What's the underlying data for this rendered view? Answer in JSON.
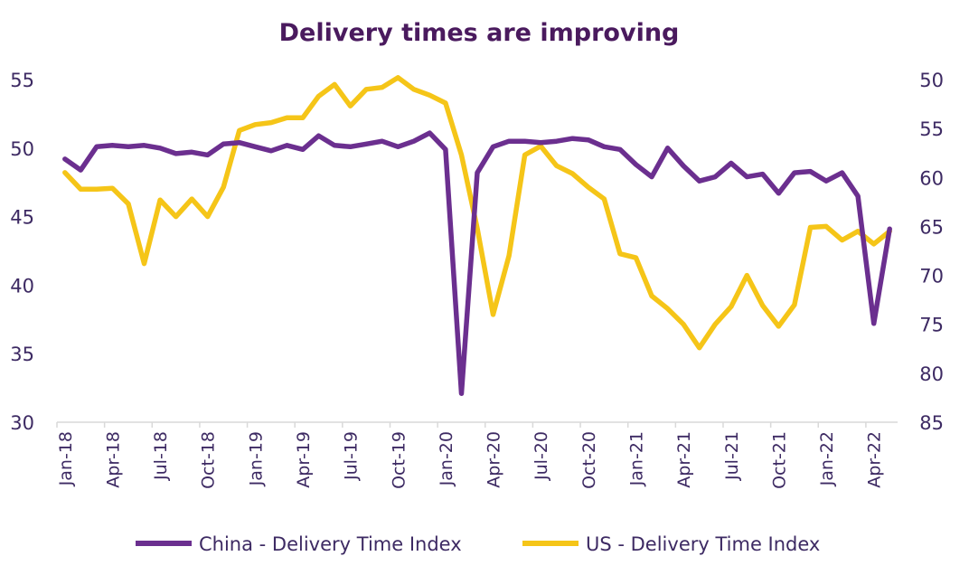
{
  "chart_data": {
    "type": "line",
    "title": "Delivery times are improving",
    "colors": {
      "china": "#6b2f8f",
      "us": "#f5c518",
      "title": "#4a1a5e",
      "text": "#3d2a63",
      "axis": "#d9d9d9"
    },
    "x_tick_labels": [
      "Jan-18",
      "Apr-18",
      "Jul-18",
      "Oct-18",
      "Jan-19",
      "Apr-19",
      "Jul-19",
      "Oct-19",
      "Jan-20",
      "Apr-20",
      "Jul-20",
      "Oct-20",
      "Jan-21",
      "Apr-21",
      "Jul-21",
      "Oct-21",
      "Jan-22",
      "Apr-22"
    ],
    "y_left": {
      "ylim": [
        30,
        55
      ],
      "ticks": [
        "30",
        "35",
        "40",
        "45",
        "50",
        "55"
      ]
    },
    "y_right": {
      "ylim": [
        85,
        50
      ],
      "inverted": true,
      "ticks": [
        "85",
        "80",
        "75",
        "70",
        "65",
        "60",
        "55",
        "50"
      ]
    },
    "x": [
      "Jan-18",
      "Feb-18",
      "Mar-18",
      "Apr-18",
      "May-18",
      "Jun-18",
      "Jul-18",
      "Aug-18",
      "Sep-18",
      "Oct-18",
      "Nov-18",
      "Dec-18",
      "Jan-19",
      "Feb-19",
      "Mar-19",
      "Apr-19",
      "May-19",
      "Jun-19",
      "Jul-19",
      "Aug-19",
      "Sep-19",
      "Oct-19",
      "Nov-19",
      "Dec-19",
      "Jan-20",
      "Feb-20",
      "Mar-20",
      "Apr-20",
      "May-20",
      "Jun-20",
      "Jul-20",
      "Aug-20",
      "Sep-20",
      "Oct-20",
      "Nov-20",
      "Dec-20",
      "Jan-21",
      "Feb-21",
      "Mar-21",
      "Apr-21",
      "May-21",
      "Jun-21",
      "Jul-21",
      "Aug-21",
      "Sep-21",
      "Oct-21",
      "Nov-21",
      "Dec-21",
      "Jan-22",
      "Feb-22",
      "Mar-22",
      "Apr-22",
      "May-22"
    ],
    "series": [
      {
        "name": "China - Delivery Time Index",
        "axis": "left",
        "values": [
          49.2,
          48.4,
          50.1,
          50.2,
          50.1,
          50.2,
          50.0,
          49.6,
          49.7,
          49.5,
          50.3,
          50.4,
          50.1,
          49.8,
          50.2,
          49.9,
          50.9,
          50.2,
          50.1,
          50.3,
          50.5,
          50.1,
          50.5,
          51.1,
          49.9,
          32.1,
          48.2,
          50.1,
          50.5,
          50.5,
          50.4,
          50.5,
          50.7,
          50.6,
          50.1,
          49.9,
          48.8,
          47.9,
          50.0,
          48.7,
          47.6,
          47.9,
          48.9,
          47.9,
          48.1,
          46.7,
          48.2,
          48.3,
          47.6,
          48.2,
          46.5,
          37.2,
          44.1
        ]
      },
      {
        "name": "US - Delivery Time Index",
        "axis": "right",
        "values": [
          59.5,
          61.2,
          61.2,
          61.1,
          62.7,
          68.8,
          62.3,
          64.0,
          62.2,
          64.0,
          61.0,
          55.2,
          54.6,
          54.4,
          53.9,
          53.9,
          51.7,
          50.5,
          52.7,
          51.0,
          50.8,
          49.8,
          51.0,
          51.6,
          52.4,
          57.7,
          65.2,
          74.0,
          68.0,
          57.7,
          56.8,
          58.8,
          59.6,
          61.0,
          62.2,
          67.8,
          68.2,
          72.1,
          73.4,
          75.0,
          77.4,
          75.0,
          73.2,
          70.0,
          73.1,
          75.2,
          73.0,
          65.1,
          65.0,
          66.4,
          65.5,
          66.8,
          65.5
        ]
      }
    ]
  }
}
